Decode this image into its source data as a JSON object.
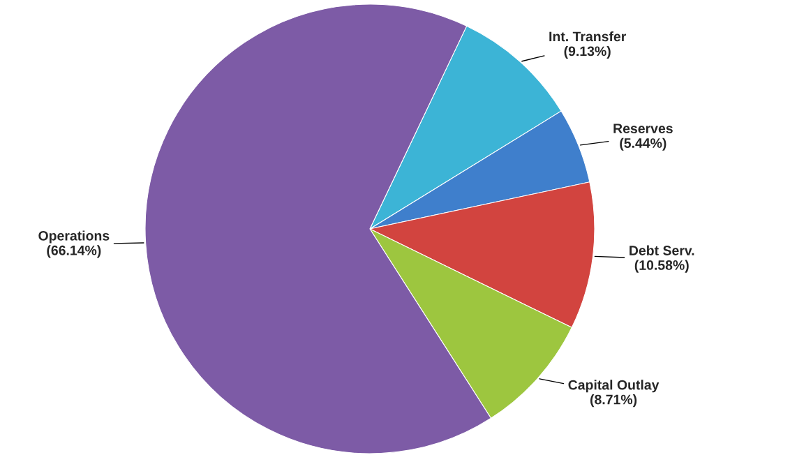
{
  "chart_data": {
    "type": "pie",
    "categories": [
      "Int. Transfer",
      "Reserves",
      "Debt Serv.",
      "Capital Outlay",
      "Operations"
    ],
    "values": [
      9.13,
      5.44,
      10.58,
      8.71,
      66.14
    ],
    "value_labels": [
      "(9.13%)",
      "(5.44%)",
      "(10.58%)",
      "(8.71%)",
      "(66.14%)"
    ],
    "colors": [
      "#3cb4d6",
      "#3f7fcc",
      "#d2443f",
      "#9dc63f",
      "#7d5ba6"
    ],
    "legend": false
  }
}
